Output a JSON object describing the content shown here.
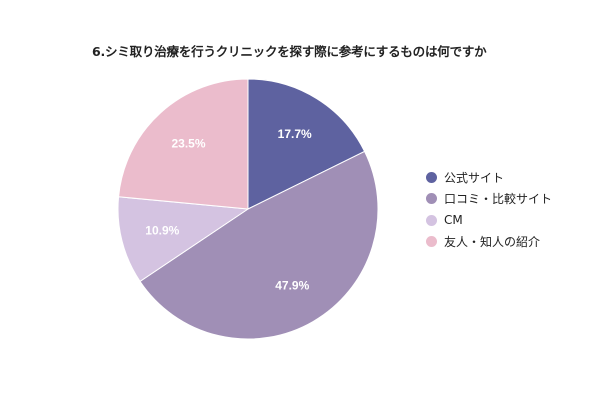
{
  "chart_data": {
    "type": "pie",
    "title": "6.シミ取り治療を行うクリニックを探す際に参考にするものは何ですか",
    "categories": [
      "公式サイト",
      "口コミ・比較サイト",
      "CM",
      "友人・知人の紹介"
    ],
    "values": [
      17.7,
      47.9,
      10.9,
      23.5
    ],
    "data_labels": [
      "17.7%",
      "47.9%",
      "10.9%",
      "23.5%"
    ],
    "colors": [
      "#5e62a0",
      "#a08fb6",
      "#d4c3e1",
      "#ebbccc"
    ],
    "legend_position": "right",
    "start_angle": "12 o'clock",
    "direction": "clockwise"
  }
}
